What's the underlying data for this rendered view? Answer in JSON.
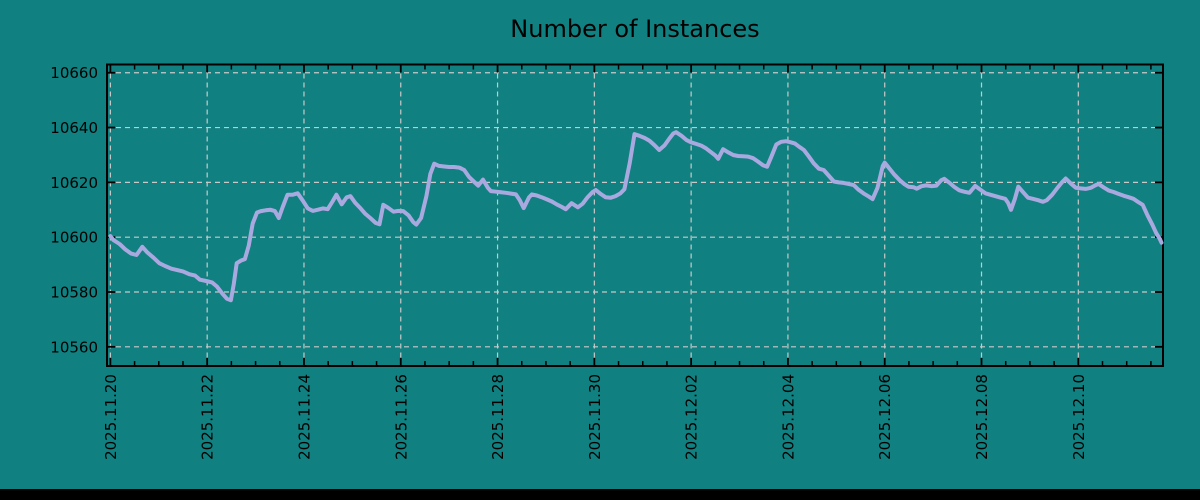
{
  "colors": {
    "background": "#118080",
    "line": "#a9a9e0",
    "grid": "#c9c9c9",
    "axis": "#000000",
    "text": "#000000",
    "bottom_bar": "#000000"
  },
  "chart_data": {
    "type": "line",
    "title": "Number of Instances",
    "xlabel": "",
    "ylabel": "",
    "grid": true,
    "legend": "none",
    "x_tick_labels": [
      "2025.11.20",
      "2025.11.22",
      "2025.11.24",
      "2025.11.26",
      "2025.11.28",
      "2025.11.30",
      "2025.12.02",
      "2025.12.04",
      "2025.12.06",
      "2025.12.08",
      "2025.12.10"
    ],
    "x_tick_days": [
      0,
      2,
      4,
      6,
      8,
      10,
      12,
      14,
      16,
      18,
      20
    ],
    "x_minor_step_days": 0.5,
    "xlim_days": [
      -0.07,
      21.75
    ],
    "yticks": [
      10560,
      10580,
      10600,
      10620,
      10640,
      10660
    ],
    "ylim": [
      10553,
      10663
    ],
    "series": [
      {
        "name": "instances",
        "points": [
          [
            0.0,
            10600.4
          ],
          [
            0.06,
            10599.0
          ],
          [
            0.19,
            10597.5
          ],
          [
            0.31,
            10595.5
          ],
          [
            0.43,
            10594.0
          ],
          [
            0.54,
            10593.5
          ],
          [
            0.66,
            10596.5
          ],
          [
            0.76,
            10594.5
          ],
          [
            0.89,
            10592.5
          ],
          [
            1.01,
            10590.5
          ],
          [
            1.13,
            10589.5
          ],
          [
            1.26,
            10588.5
          ],
          [
            1.38,
            10588.0
          ],
          [
            1.5,
            10587.5
          ],
          [
            1.63,
            10586.5
          ],
          [
            1.75,
            10586.0
          ],
          [
            1.85,
            10584.5
          ],
          [
            1.98,
            10584.0
          ],
          [
            2.1,
            10583.5
          ],
          [
            2.2,
            10582.0
          ],
          [
            2.31,
            10579.5
          ],
          [
            2.41,
            10577.5
          ],
          [
            2.49,
            10577.0
          ],
          [
            2.55,
            10583.0
          ],
          [
            2.61,
            10590.5
          ],
          [
            2.7,
            10591.5
          ],
          [
            2.78,
            10592.0
          ],
          [
            2.86,
            10597.0
          ],
          [
            2.94,
            10605.0
          ],
          [
            3.03,
            10609.0
          ],
          [
            3.11,
            10609.5
          ],
          [
            3.21,
            10609.8
          ],
          [
            3.31,
            10610.0
          ],
          [
            3.4,
            10609.5
          ],
          [
            3.48,
            10607.0
          ],
          [
            3.56,
            10611.0
          ],
          [
            3.66,
            10615.5
          ],
          [
            3.77,
            10615.5
          ],
          [
            3.87,
            10616.0
          ],
          [
            3.97,
            10613.5
          ],
          [
            4.08,
            10610.5
          ],
          [
            4.18,
            10609.6
          ],
          [
            4.28,
            10610.0
          ],
          [
            4.39,
            10610.5
          ],
          [
            4.49,
            10610.2
          ],
          [
            4.59,
            10613.0
          ],
          [
            4.67,
            10615.5
          ],
          [
            4.78,
            10612.0
          ],
          [
            4.88,
            10614.5
          ],
          [
            4.96,
            10615.0
          ],
          [
            5.06,
            10612.5
          ],
          [
            5.17,
            10610.5
          ],
          [
            5.27,
            10608.5
          ],
          [
            5.37,
            10607.0
          ],
          [
            5.48,
            10605.2
          ],
          [
            5.56,
            10604.7
          ],
          [
            5.64,
            10611.8
          ],
          [
            5.74,
            10610.7
          ],
          [
            5.85,
            10609.3
          ],
          [
            5.95,
            10609.6
          ],
          [
            6.05,
            10609.5
          ],
          [
            6.16,
            10608.0
          ],
          [
            6.26,
            10605.5
          ],
          [
            6.32,
            10604.6
          ],
          [
            6.42,
            10607.0
          ],
          [
            6.53,
            10615.0
          ],
          [
            6.61,
            10623.0
          ],
          [
            6.69,
            10626.8
          ],
          [
            6.79,
            10626.0
          ],
          [
            6.9,
            10625.8
          ],
          [
            7.0,
            10625.6
          ],
          [
            7.1,
            10625.6
          ],
          [
            7.21,
            10625.4
          ],
          [
            7.31,
            10624.5
          ],
          [
            7.41,
            10622.0
          ],
          [
            7.51,
            10620.3
          ],
          [
            7.6,
            10618.8
          ],
          [
            7.7,
            10621.0
          ],
          [
            7.8,
            10618.0
          ],
          [
            7.86,
            10616.8
          ],
          [
            7.97,
            10616.6
          ],
          [
            8.07,
            10616.4
          ],
          [
            8.17,
            10616.2
          ],
          [
            8.28,
            10615.9
          ],
          [
            8.38,
            10615.6
          ],
          [
            8.46,
            10613.5
          ],
          [
            8.54,
            10610.6
          ],
          [
            8.65,
            10614.5
          ],
          [
            8.71,
            10615.6
          ],
          [
            8.81,
            10615.2
          ],
          [
            8.91,
            10614.6
          ],
          [
            9.02,
            10613.8
          ],
          [
            9.12,
            10613.0
          ],
          [
            9.22,
            10612.0
          ],
          [
            9.33,
            10611.0
          ],
          [
            9.41,
            10610.2
          ],
          [
            9.53,
            10612.4
          ],
          [
            9.66,
            10610.9
          ],
          [
            9.76,
            10612.2
          ],
          [
            9.86,
            10614.6
          ],
          [
            9.96,
            10616.4
          ],
          [
            10.03,
            10617.2
          ],
          [
            10.13,
            10615.8
          ],
          [
            10.23,
            10614.6
          ],
          [
            10.34,
            10614.4
          ],
          [
            10.44,
            10615.0
          ],
          [
            10.54,
            10616.0
          ],
          [
            10.62,
            10617.5
          ],
          [
            10.73,
            10627.0
          ],
          [
            10.83,
            10637.6
          ],
          [
            10.93,
            10637.0
          ],
          [
            11.04,
            10636.2
          ],
          [
            11.14,
            10635.2
          ],
          [
            11.24,
            10633.6
          ],
          [
            11.34,
            10631.8
          ],
          [
            11.45,
            10633.5
          ],
          [
            11.55,
            10636.0
          ],
          [
            11.63,
            10637.8
          ],
          [
            11.69,
            10638.3
          ],
          [
            11.8,
            10637.0
          ],
          [
            11.9,
            10635.5
          ],
          [
            12.0,
            10634.6
          ],
          [
            12.11,
            10634.0
          ],
          [
            12.21,
            10633.4
          ],
          [
            12.31,
            10632.4
          ],
          [
            12.41,
            10631.0
          ],
          [
            12.5,
            10629.8
          ],
          [
            12.56,
            10628.6
          ],
          [
            12.66,
            10632.1
          ],
          [
            12.76,
            10631.0
          ],
          [
            12.87,
            10630.0
          ],
          [
            12.97,
            10629.6
          ],
          [
            13.07,
            10629.5
          ],
          [
            13.18,
            10629.4
          ],
          [
            13.28,
            10628.8
          ],
          [
            13.38,
            10627.6
          ],
          [
            13.49,
            10626.2
          ],
          [
            13.57,
            10625.7
          ],
          [
            13.66,
            10629.5
          ],
          [
            13.76,
            10633.8
          ],
          [
            13.86,
            10634.8
          ],
          [
            13.96,
            10635.0
          ],
          [
            14.06,
            10634.6
          ],
          [
            14.14,
            10634.2
          ],
          [
            14.23,
            10633.0
          ],
          [
            14.33,
            10631.8
          ],
          [
            14.43,
            10629.5
          ],
          [
            14.53,
            10627.0
          ],
          [
            14.64,
            10625.0
          ],
          [
            14.74,
            10624.5
          ],
          [
            14.84,
            10622.5
          ],
          [
            14.95,
            10620.3
          ],
          [
            15.05,
            10620.0
          ],
          [
            15.15,
            10619.8
          ],
          [
            15.26,
            10619.4
          ],
          [
            15.36,
            10619.0
          ],
          [
            15.46,
            10617.3
          ],
          [
            15.56,
            10616.0
          ],
          [
            15.67,
            10614.8
          ],
          [
            15.75,
            10613.9
          ],
          [
            15.85,
            10618.0
          ],
          [
            15.96,
            10626.0
          ],
          [
            16.0,
            10627.2
          ],
          [
            16.1,
            10625.0
          ],
          [
            16.2,
            10622.8
          ],
          [
            16.31,
            10620.8
          ],
          [
            16.41,
            10619.3
          ],
          [
            16.49,
            10618.4
          ],
          [
            16.6,
            10618.2
          ],
          [
            16.66,
            10617.7
          ],
          [
            16.76,
            10618.6
          ],
          [
            16.86,
            10618.9
          ],
          [
            16.97,
            10618.6
          ],
          [
            17.07,
            10618.8
          ],
          [
            17.17,
            10620.8
          ],
          [
            17.23,
            10621.3
          ],
          [
            17.34,
            10619.8
          ],
          [
            17.44,
            10618.3
          ],
          [
            17.54,
            10617.1
          ],
          [
            17.64,
            10616.6
          ],
          [
            17.75,
            10616.2
          ],
          [
            17.87,
            10618.7
          ],
          [
            17.97,
            10617.4
          ],
          [
            18.08,
            10616.0
          ],
          [
            18.18,
            10615.5
          ],
          [
            18.28,
            10615.0
          ],
          [
            18.38,
            10614.5
          ],
          [
            18.49,
            10614.0
          ],
          [
            18.55,
            10612.5
          ],
          [
            18.61,
            10610.0
          ],
          [
            18.69,
            10614.0
          ],
          [
            18.76,
            10618.4
          ],
          [
            18.86,
            10616.4
          ],
          [
            18.96,
            10614.4
          ],
          [
            19.06,
            10614.0
          ],
          [
            19.17,
            10613.5
          ],
          [
            19.27,
            10612.9
          ],
          [
            19.35,
            10613.5
          ],
          [
            19.46,
            10615.5
          ],
          [
            19.56,
            10617.8
          ],
          [
            19.66,
            10620.0
          ],
          [
            19.74,
            10621.4
          ],
          [
            19.85,
            10619.5
          ],
          [
            19.95,
            10618.0
          ],
          [
            20.05,
            10617.8
          ],
          [
            20.15,
            10617.6
          ],
          [
            20.26,
            10618.0
          ],
          [
            20.36,
            10619.0
          ],
          [
            20.42,
            10619.4
          ],
          [
            20.52,
            10618.2
          ],
          [
            20.63,
            10617.0
          ],
          [
            20.73,
            10616.5
          ],
          [
            20.83,
            10615.8
          ],
          [
            20.94,
            10615.1
          ],
          [
            21.04,
            10614.6
          ],
          [
            21.14,
            10614.0
          ],
          [
            21.24,
            10612.8
          ],
          [
            21.33,
            10611.8
          ],
          [
            21.43,
            10608.0
          ],
          [
            21.53,
            10604.5
          ],
          [
            21.61,
            10601.5
          ],
          [
            21.68,
            10599.5
          ],
          [
            21.72,
            10598.0
          ]
        ]
      }
    ]
  }
}
